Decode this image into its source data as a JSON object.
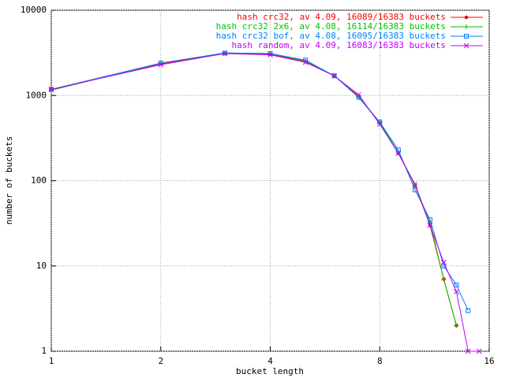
{
  "chart_data": {
    "type": "line",
    "xlabel": "bucket length",
    "ylabel": "number of buckets",
    "xscale": "log",
    "yscale": "log",
    "grid": true,
    "legend": "upper right",
    "xlim": [
      1,
      16
    ],
    "ylim": [
      1,
      10000
    ],
    "xticks": [
      1,
      2,
      4,
      8,
      16
    ],
    "yticks": [
      1,
      10,
      100,
      1000,
      10000
    ],
    "x": [
      1,
      2,
      3,
      4,
      5,
      6,
      7,
      8,
      9,
      10,
      11,
      12,
      13,
      14,
      15
    ],
    "series": [
      {
        "name": "hash crc32, av 4.09, 16089/16383 buckets",
        "color": "#ff0000",
        "marker": "dot",
        "values": [
          1180,
          2350,
          3100,
          3050,
          2500,
          1700,
          980,
          480,
          210,
          88,
          30,
          7,
          2,
          null,
          null
        ]
      },
      {
        "name": "hash crc32 2x6, av 4.08, 16114/16383 buckets",
        "color": "#00c000",
        "marker": "plus",
        "values": [
          1150,
          2400,
          3150,
          3100,
          2550,
          1700,
          950,
          480,
          215,
          90,
          32,
          7,
          2,
          null,
          null
        ]
      },
      {
        "name": "hash crc32 bof, av 4.08, 16095/16383 buckets",
        "color": "#0080ff",
        "marker": "square",
        "values": [
          1180,
          2400,
          3150,
          3100,
          2600,
          1700,
          950,
          490,
          230,
          78,
          35,
          10,
          6,
          3,
          null
        ]
      },
      {
        "name": "hash random, av 4.09, 16083/16383 buckets",
        "color": "#c000ff",
        "marker": "cross",
        "values": [
          1180,
          2300,
          3100,
          3000,
          2450,
          1700,
          1020,
          460,
          210,
          90,
          30,
          11,
          5,
          1,
          1
        ]
      }
    ]
  }
}
